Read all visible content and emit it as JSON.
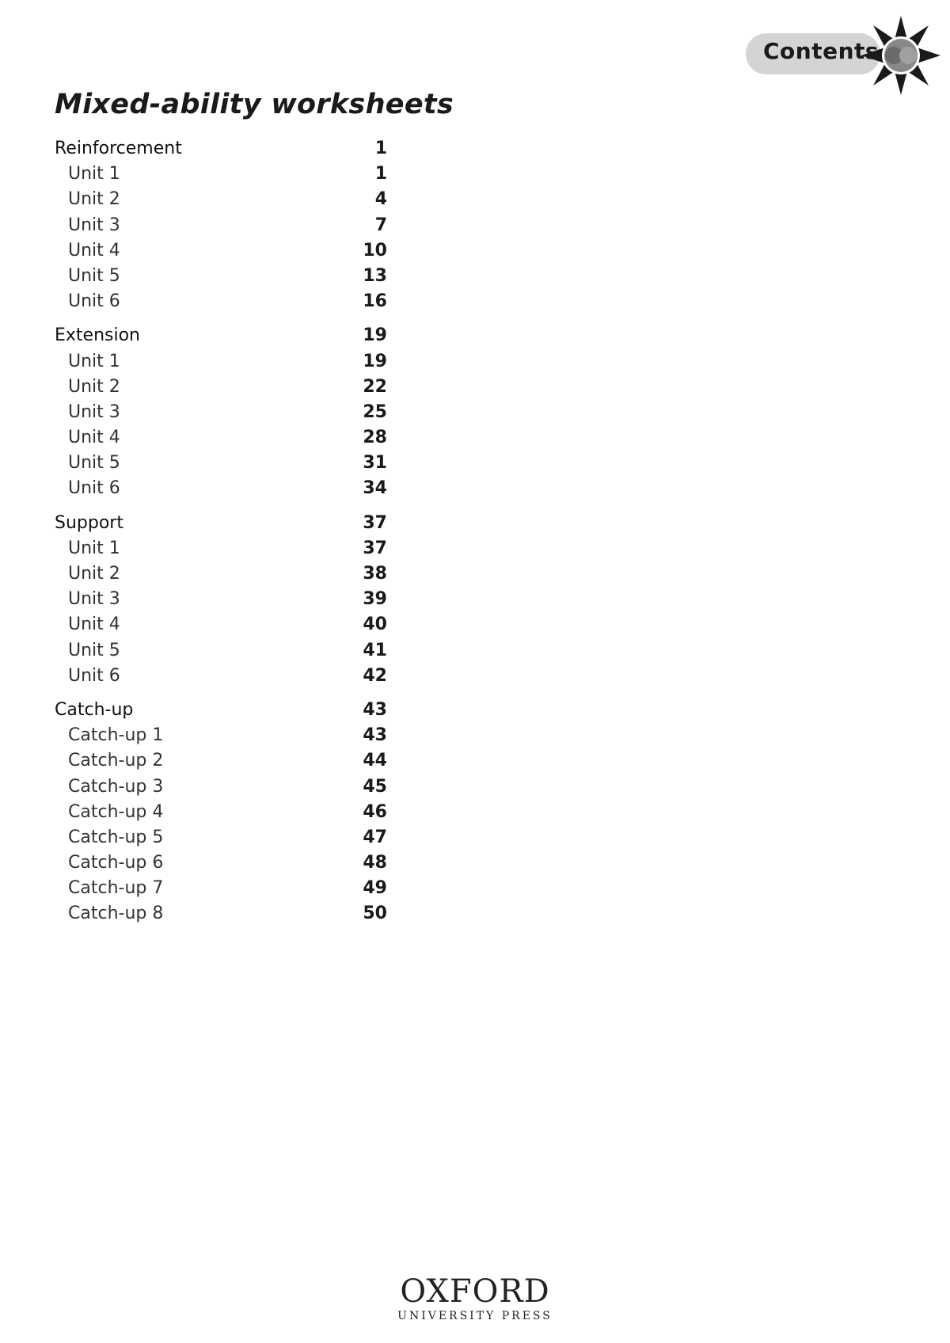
{
  "header": {
    "badge_label": "Contents",
    "badge_icon": "star-children-icon"
  },
  "title": "Mixed-ability worksheets",
  "sections": [
    {
      "label": "Reinforcement",
      "page": "1",
      "items": [
        {
          "label": "Unit 1",
          "page": "1"
        },
        {
          "label": "Unit 2",
          "page": "4"
        },
        {
          "label": "Unit 3",
          "page": "7"
        },
        {
          "label": "Unit 4",
          "page": "10"
        },
        {
          "label": "Unit 5",
          "page": "13"
        },
        {
          "label": "Unit 6",
          "page": "16"
        }
      ]
    },
    {
      "label": "Extension",
      "page": "19",
      "items": [
        {
          "label": "Unit 1",
          "page": "19"
        },
        {
          "label": "Unit 2",
          "page": "22"
        },
        {
          "label": "Unit 3",
          "page": "25"
        },
        {
          "label": "Unit 4",
          "page": "28"
        },
        {
          "label": "Unit 5",
          "page": "31"
        },
        {
          "label": "Unit 6",
          "page": "34"
        }
      ]
    },
    {
      "label": "Support",
      "page": "37",
      "items": [
        {
          "label": "Unit 1",
          "page": "37"
        },
        {
          "label": "Unit 2",
          "page": "38"
        },
        {
          "label": "Unit 3",
          "page": "39"
        },
        {
          "label": "Unit 4",
          "page": "40"
        },
        {
          "label": "Unit 5",
          "page": "41"
        },
        {
          "label": "Unit 6",
          "page": "42"
        }
      ]
    },
    {
      "label": "Catch-up",
      "page": "43",
      "items": [
        {
          "label": "Catch-up 1",
          "page": "43"
        },
        {
          "label": "Catch-up 2",
          "page": "44"
        },
        {
          "label": "Catch-up 3",
          "page": "45"
        },
        {
          "label": "Catch-up 4",
          "page": "46"
        },
        {
          "label": "Catch-up 5",
          "page": "47"
        },
        {
          "label": "Catch-up 6",
          "page": "48"
        },
        {
          "label": "Catch-up 7",
          "page": "49"
        },
        {
          "label": "Catch-up 8",
          "page": "50"
        }
      ]
    }
  ],
  "footer": {
    "publisher": "OXFORD",
    "publisher_sub": "UNIVERSITY PRESS"
  }
}
